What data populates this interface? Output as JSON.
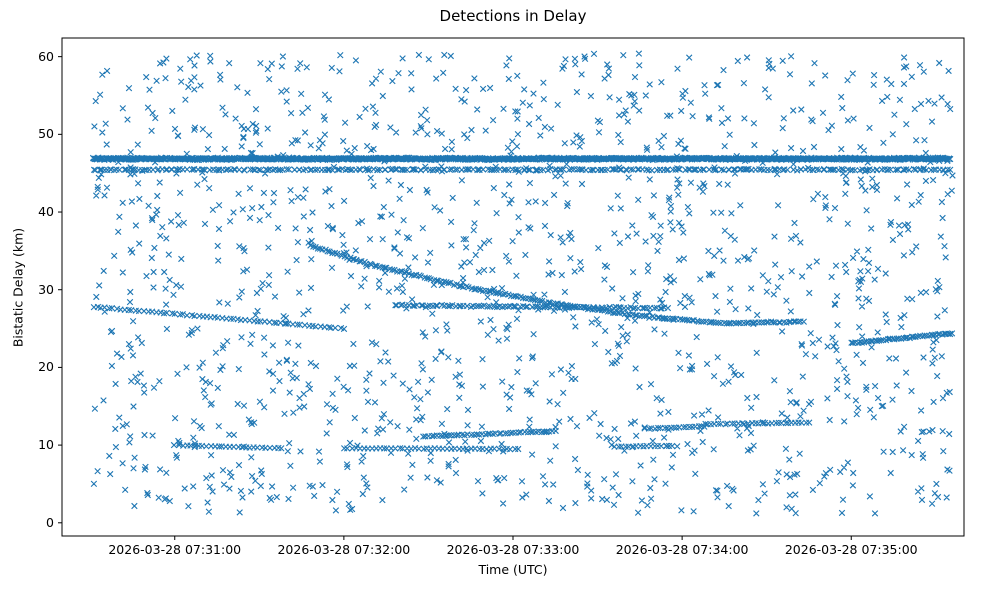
{
  "title": "Detections in Delay",
  "chart_data": {
    "type": "scatter",
    "title": "Detections in Delay",
    "xlabel": "Time (UTC)",
    "ylabel": "Bistatic Delay (km)",
    "marker": "x",
    "marker_color": "#1f77b4",
    "grid": false,
    "legend": "none",
    "seed": 42,
    "x_axis": {
      "description": "t is seconds after 2026-03-28 07:30:20 UTC (left plot edge)",
      "t_min": 0,
      "t_max": 320,
      "tick_seconds": [
        40,
        100,
        160,
        220,
        280
      ],
      "tick_labels": [
        "2026-03-28 07:31:00",
        "2026-03-28 07:32:00",
        "2026-03-28 07:33:00",
        "2026-03-28 07:34:00",
        "2026-03-28 07:35:00"
      ]
    },
    "y_axis": {
      "min": -1.7,
      "max": 62.4,
      "ticks": [
        0,
        10,
        20,
        30,
        40,
        50,
        60
      ]
    },
    "series": [
      {
        "name": "clutter-uniform",
        "kind": "uniform",
        "t0": 11,
        "t1": 316,
        "y_min": 1.2,
        "y_max": 60.4,
        "count": 1450
      },
      {
        "name": "direct-path-line-47km",
        "kind": "polyline",
        "points": [
          [
            11,
            46.85
          ],
          [
            315,
            46.85
          ]
        ],
        "count": 1200,
        "jitter_y": 0.16,
        "jitter_t": 0.5
      },
      {
        "name": "dense-row-45km",
        "kind": "polyline",
        "points": [
          [
            11,
            45.45
          ],
          [
            315,
            45.45
          ]
        ],
        "count": 310,
        "jitter_y": 0.1,
        "jitter_t": 1.5
      },
      {
        "name": "track-descending-left-28-to-25km",
        "kind": "polyline",
        "points": [
          [
            11,
            27.8
          ],
          [
            100,
            25.0
          ]
        ],
        "count": 65,
        "jitter_y": 0.07,
        "jitter_t": 0.8
      },
      {
        "name": "track-descending-main-36-to-25km",
        "kind": "polyline",
        "points": [
          [
            88,
            35.7
          ],
          [
            110,
            33.2
          ],
          [
            145,
            30.2
          ],
          [
            175,
            28.2
          ],
          [
            205,
            26.6
          ],
          [
            235,
            25.7
          ],
          [
            263,
            25.9
          ]
        ],
        "count": 200,
        "jitter_y": 0.12,
        "jitter_t": 0.6
      },
      {
        "name": "track-row-28km",
        "kind": "polyline",
        "points": [
          [
            118,
            28.0
          ],
          [
            215,
            27.6
          ]
        ],
        "count": 95,
        "jitter_y": 0.12,
        "jitter_t": 0.8
      },
      {
        "name": "track-10km-a",
        "kind": "polyline",
        "points": [
          [
            40,
            10.0
          ],
          [
            78,
            9.6
          ]
        ],
        "count": 28,
        "jitter_y": 0.06,
        "jitter_t": 0.6
      },
      {
        "name": "track-9p5km",
        "kind": "polyline",
        "points": [
          [
            100,
            9.6
          ],
          [
            162,
            9.5
          ]
        ],
        "count": 45,
        "jitter_y": 0.06,
        "jitter_t": 0.6
      },
      {
        "name": "track-11p5km-ascending",
        "kind": "polyline",
        "points": [
          [
            128,
            11.1
          ],
          [
            175,
            11.8
          ]
        ],
        "count": 48,
        "jitter_y": 0.07,
        "jitter_t": 0.6
      },
      {
        "name": "track-10km-b",
        "kind": "polyline",
        "points": [
          [
            196,
            9.8
          ],
          [
            218,
            9.9
          ]
        ],
        "count": 18,
        "jitter_y": 0.06,
        "jitter_t": 0.6
      },
      {
        "name": "track-12km",
        "kind": "polyline",
        "points": [
          [
            207,
            12.1
          ],
          [
            228,
            12.4
          ]
        ],
        "count": 20,
        "jitter_y": 0.06,
        "jitter_t": 0.6
      },
      {
        "name": "track-13km-row",
        "kind": "polyline",
        "points": [
          [
            228,
            12.7
          ],
          [
            265,
            12.9
          ]
        ],
        "count": 32,
        "jitter_y": 0.07,
        "jitter_t": 0.6
      },
      {
        "name": "track-right-ascending-23-to-24km",
        "kind": "polyline",
        "points": [
          [
            280,
            23.1
          ],
          [
            316,
            24.4
          ]
        ],
        "count": 48,
        "jitter_y": 0.1,
        "jitter_t": 0.5
      }
    ]
  }
}
